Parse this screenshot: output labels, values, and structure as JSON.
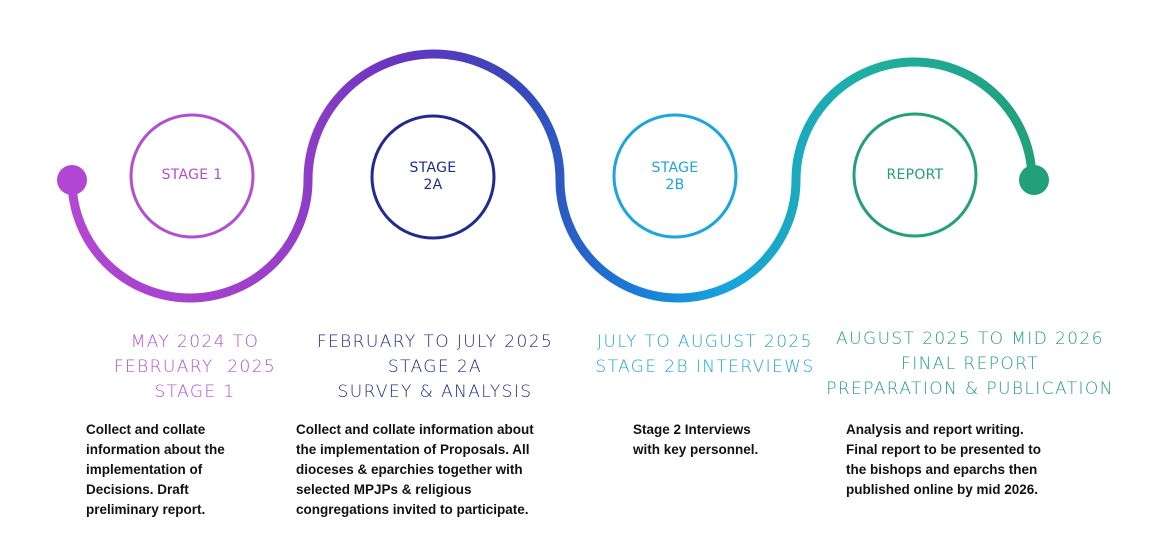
{
  "colors": {
    "stage1": "#B24FD0",
    "stage2a": "#1F2B8F",
    "stage2b": "#1AA5DF",
    "report": "#21A07A",
    "description": "#111111"
  },
  "stages": [
    {
      "id": "stage1",
      "circle_label": "STAGE 1",
      "heading_lines": [
        "MAY 2024 TO",
        "FEBRUARY  2025",
        "STAGE 1"
      ],
      "description_lines": [
        "Collect and collate",
        "information about the",
        "implementation of",
        "Decisions. Draft",
        "preliminary report."
      ]
    },
    {
      "id": "stage2a",
      "circle_label": "STAGE\n2A",
      "heading_lines": [
        "FEBRUARY TO JULY 2025",
        "STAGE 2A",
        "SURVEY & ANALYSIS"
      ],
      "description_lines": [
        "Collect and collate information about",
        "the implementation of Proposals. All",
        "dioceses & eparchies together with",
        "selected MPJPs & religious",
        "congregations invited to participate."
      ]
    },
    {
      "id": "stage2b",
      "circle_label": "STAGE\n2B",
      "heading_lines": [
        "JULY TO AUGUST 2025",
        "STAGE 2B INTERVIEWS"
      ],
      "description_lines": [
        "Stage 2 Interviews",
        "with key personnel."
      ]
    },
    {
      "id": "report",
      "circle_label": "REPORT",
      "heading_lines": [
        "AUGUST 2025 TO MID 2026",
        "FINAL REPORT",
        "PREPARATION & PUBLICATION"
      ],
      "description_lines": [
        "Analysis and report writing.",
        "Final report to be presented to",
        "the bishops and eparchs then",
        "published online by mid 2026."
      ]
    }
  ]
}
